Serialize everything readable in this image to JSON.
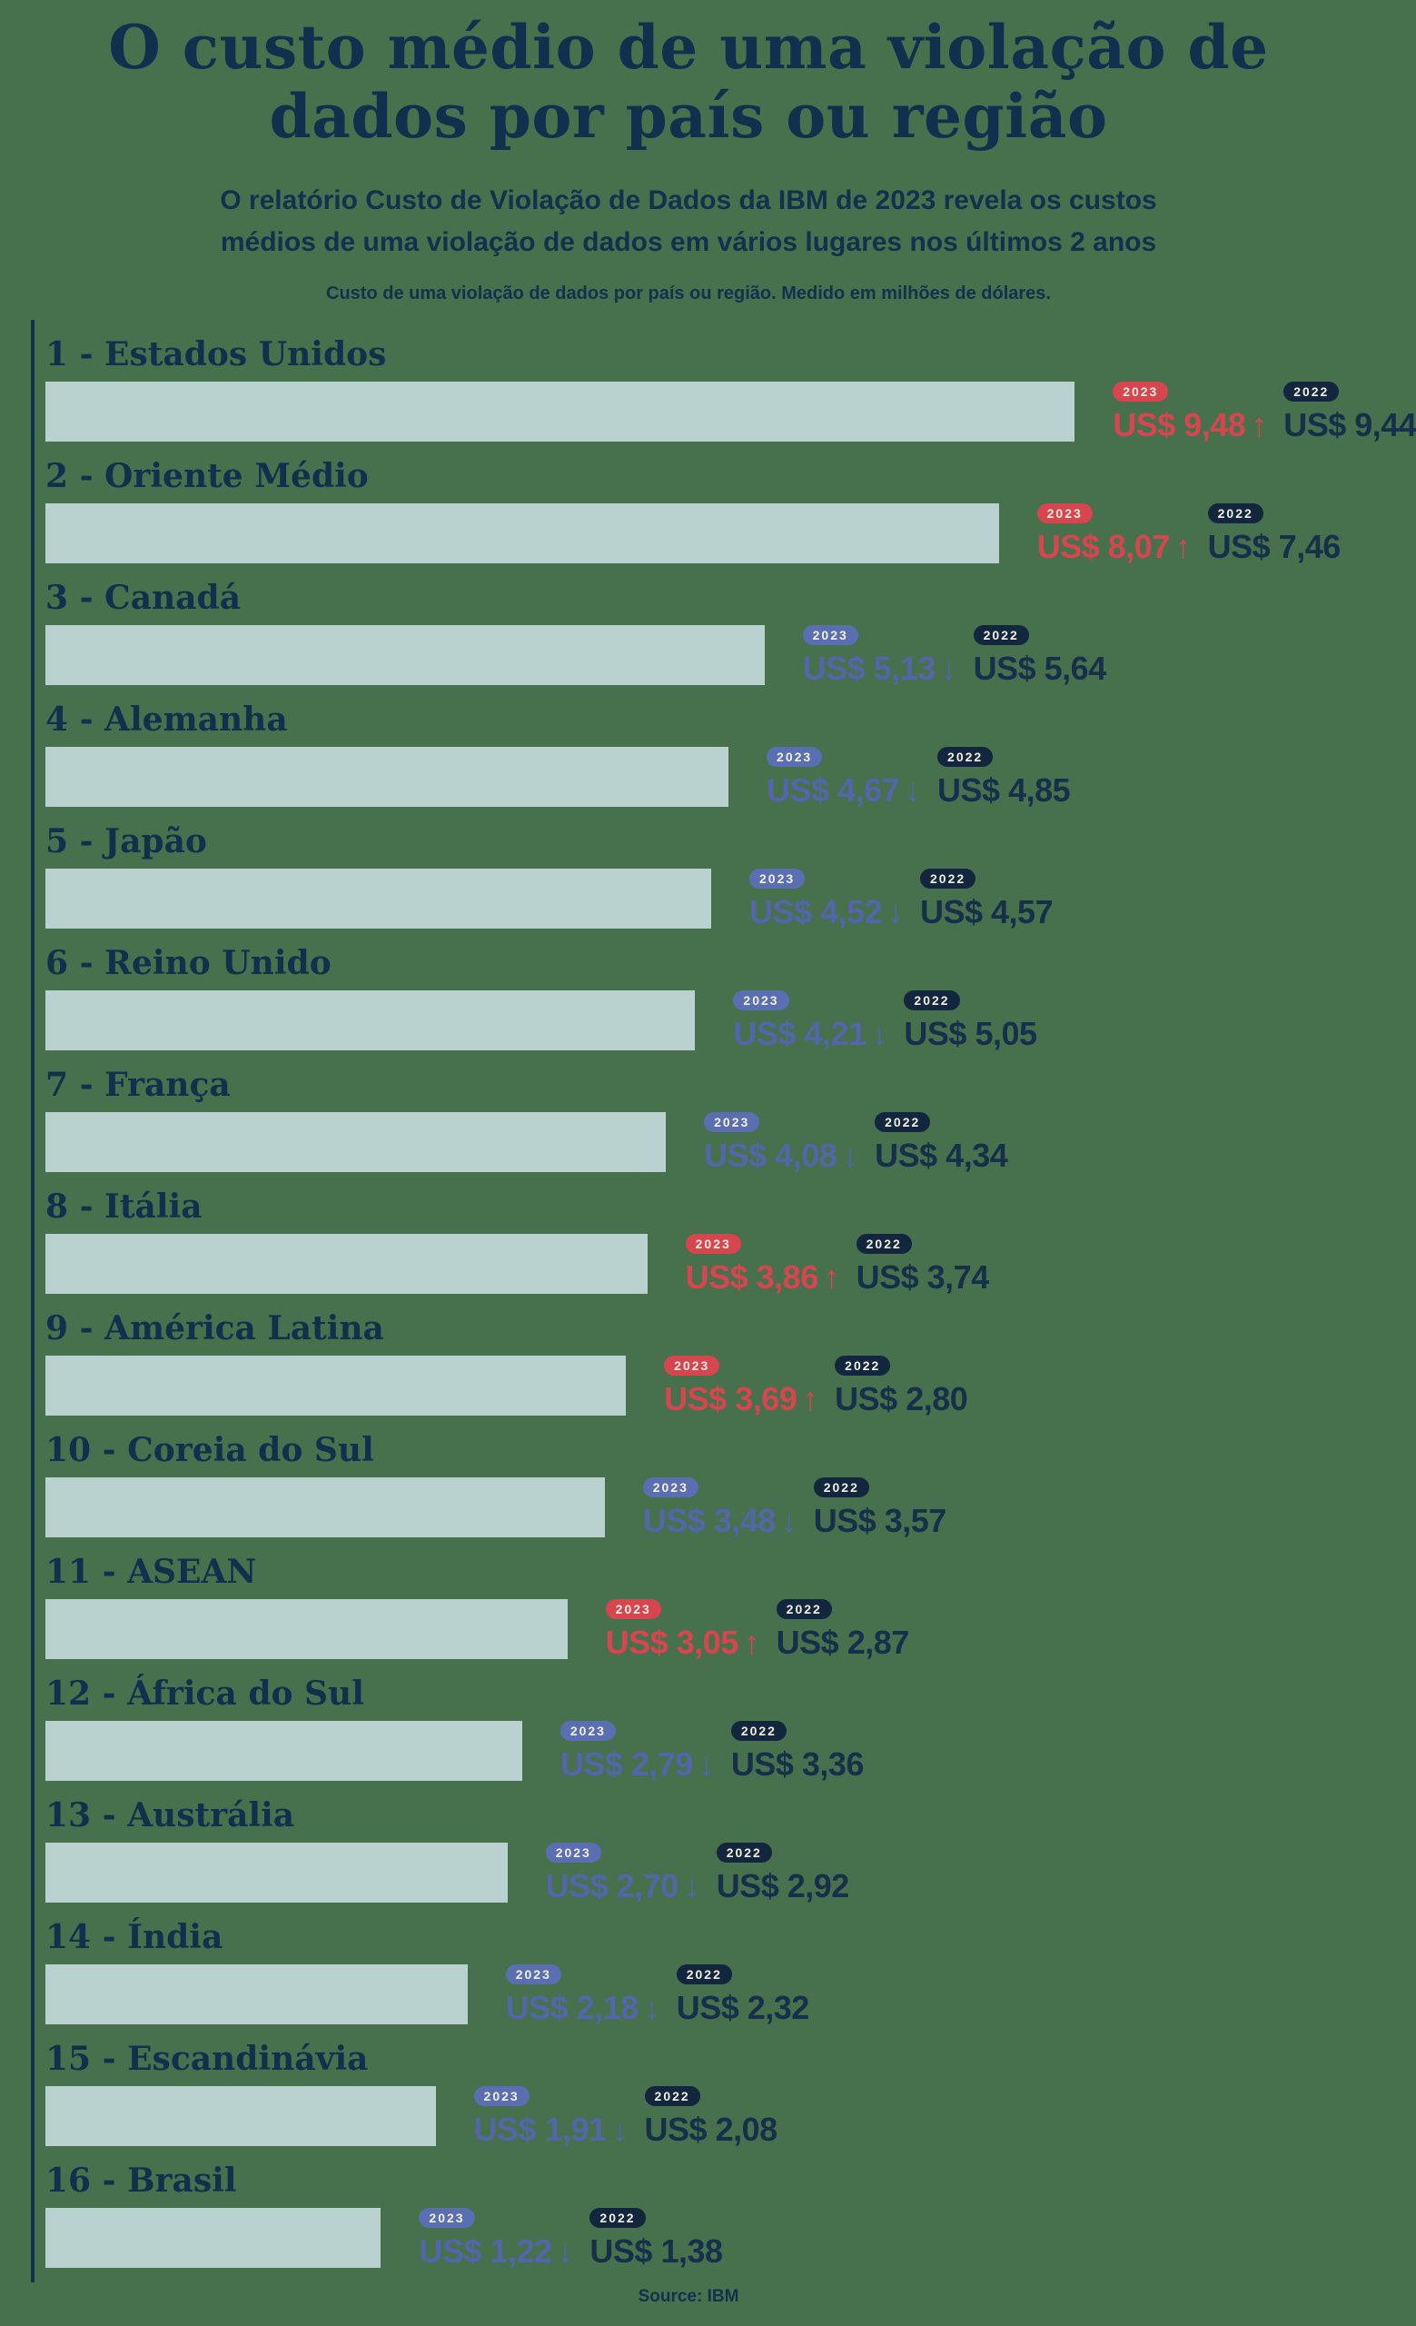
{
  "header": {
    "title": "O custo médio de uma violação de dados por país ou região",
    "title_lines": [
      "O custo médio de uma violação de",
      "dados por país ou região"
    ],
    "subtitle_lines": [
      "O relatório Custo de Violação de Dados da IBM de 2023 revela os custos",
      "médios de uma violação de dados em vários lugares nos últimos 2 anos"
    ],
    "caption": "Custo de uma violação de dados por país ou região. Medido em milhões de dólares."
  },
  "footer": {
    "source": "Source: IBM"
  },
  "colors": {
    "background": "#47704d",
    "bar": "#b9d1cf",
    "navy": "#12314f",
    "badge_2022_bg": "#12263d",
    "up_red": "#d7454f",
    "down_blue": "#5a6fb2",
    "badge_text": "#f4efe3"
  },
  "chart_data": {
    "type": "bar",
    "title": "O custo médio de uma violação de dados por país ou região",
    "unit": "milhões de dólares (US$)",
    "legend": [
      "2023",
      "2022"
    ],
    "badge_2023": "2023",
    "badge_2022": "2022",
    "arrow_up": "↑",
    "arrow_down": "↓",
    "currency_prefix": "US$",
    "rows": [
      {
        "rank": 1,
        "label": "1 - Estados Unidos",
        "value_2023": 9.48,
        "text_2023": "US$ 9,48",
        "trend": "up",
        "value_2022": 9.44,
        "text_2022": "US$ 9,44",
        "bar_pct": 77.3
      },
      {
        "rank": 2,
        "label": "2 - Oriente Médio",
        "value_2023": 8.07,
        "text_2023": "US$ 8,07",
        "trend": "up",
        "value_2022": 7.46,
        "text_2022": "US$ 7,46",
        "bar_pct": 71.6
      },
      {
        "rank": 3,
        "label": "3 - Canadá",
        "value_2023": 5.13,
        "text_2023": "US$ 5,13",
        "trend": "down",
        "value_2022": 5.64,
        "text_2022": "US$ 5,64",
        "bar_pct": 54.0
      },
      {
        "rank": 4,
        "label": "4 - Alemanha",
        "value_2023": 4.67,
        "text_2023": "US$ 4,67",
        "trend": "down",
        "value_2022": 4.85,
        "text_2022": "US$ 4,85",
        "bar_pct": 51.3
      },
      {
        "rank": 5,
        "label": "5 - Japão",
        "value_2023": 4.52,
        "text_2023": "US$ 4,52",
        "trend": "down",
        "value_2022": 4.57,
        "text_2022": "US$ 4,57",
        "bar_pct": 50.0
      },
      {
        "rank": 6,
        "label": "6 - Reino Unido",
        "value_2023": 4.21,
        "text_2023": "US$ 4,21",
        "trend": "down",
        "value_2022": 5.05,
        "text_2022": "US$ 5,05",
        "bar_pct": 48.8
      },
      {
        "rank": 7,
        "label": "7 - França",
        "value_2023": 4.08,
        "text_2023": "US$ 4,08",
        "trend": "down",
        "value_2022": 4.34,
        "text_2022": "US$ 4,34",
        "bar_pct": 46.6
      },
      {
        "rank": 8,
        "label": "8 - Itália",
        "value_2023": 3.86,
        "text_2023": "US$ 3,86",
        "trend": "up",
        "value_2022": 3.74,
        "text_2022": "US$ 3,74",
        "bar_pct": 45.2
      },
      {
        "rank": 9,
        "label": "9 - América Latina",
        "value_2023": 3.69,
        "text_2023": "US$ 3,69",
        "trend": "up",
        "value_2022": 2.8,
        "text_2022": "US$ 2,80",
        "bar_pct": 43.6
      },
      {
        "rank": 10,
        "label": "10 - Coreia do Sul",
        "value_2023": 3.48,
        "text_2023": "US$ 3,48",
        "trend": "down",
        "value_2022": 3.57,
        "text_2022": "US$ 3,57",
        "bar_pct": 42.0
      },
      {
        "rank": 11,
        "label": "11 - ASEAN",
        "value_2023": 3.05,
        "text_2023": "US$ 3,05",
        "trend": "up",
        "value_2022": 2.87,
        "text_2022": "US$ 2,87",
        "bar_pct": 39.2
      },
      {
        "rank": 12,
        "label": "12 - África do Sul",
        "value_2023": 2.79,
        "text_2023": "US$ 2,79",
        "trend": "down",
        "value_2022": 3.36,
        "text_2022": "US$ 3,36",
        "bar_pct": 35.8
      },
      {
        "rank": 13,
        "label": "13 - Austrália",
        "value_2023": 2.7,
        "text_2023": "US$ 2,70",
        "trend": "down",
        "value_2022": 2.92,
        "text_2022": "US$ 2,92",
        "bar_pct": 34.7
      },
      {
        "rank": 14,
        "label": "14 - Índia",
        "value_2023": 2.18,
        "text_2023": "US$ 2,18",
        "trend": "down",
        "value_2022": 2.32,
        "text_2022": "US$ 2,32",
        "bar_pct": 31.7
      },
      {
        "rank": 15,
        "label": "15 - Escandinávia",
        "value_2023": 1.91,
        "text_2023": "US$ 1,91",
        "trend": "down",
        "value_2022": 2.08,
        "text_2022": "US$ 2,08",
        "bar_pct": 29.3
      },
      {
        "rank": 16,
        "label": "16 - Brasil",
        "value_2023": 1.22,
        "text_2023": "US$ 1,22",
        "trend": "down",
        "value_2022": 1.38,
        "text_2022": "US$ 1,38",
        "bar_pct": 25.2
      }
    ]
  }
}
